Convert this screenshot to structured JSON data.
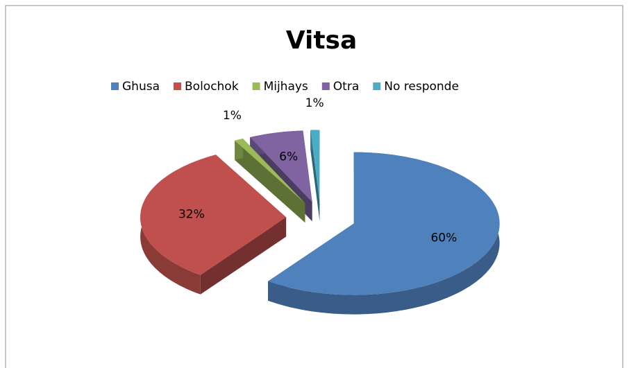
{
  "chart_data": {
    "type": "pie",
    "title": "Vitsa",
    "categories": [
      "Ghusa",
      "Bolochok",
      "Mijhays",
      "Otra",
      "No responde"
    ],
    "values": [
      60,
      32,
      1,
      6,
      1
    ],
    "value_labels": [
      "60%",
      "32%",
      "1%",
      "6%",
      "1%"
    ],
    "colors": [
      "#4f81bd",
      "#c0504d",
      "#9bbb59",
      "#8064a2",
      "#4bacc6"
    ],
    "legend": "top"
  }
}
